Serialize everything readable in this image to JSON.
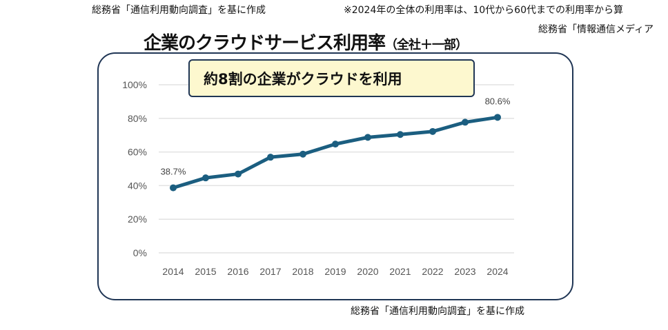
{
  "header": {
    "source_left": "総務省「通信利用動向調査」を基に作成",
    "note": "※2024年の全体の利用率は、10代から60代までの利用率から算",
    "source_right": "総務省「情報通信メディア",
    "title": "企業のクラウドサービス利用率",
    "title_suffix": "（全社＋一部）"
  },
  "callout": "約8割の企業がクラウドを利用",
  "footer_source": "総務省「通信利用動向調査」を基に作成",
  "colors": {
    "line": "#1b5e80",
    "border": "#1f3554",
    "callout_bg": "#fdf8cf"
  },
  "chart_data": {
    "type": "line",
    "title": "企業のクラウドサービス利用率",
    "categories": [
      "2014",
      "2015",
      "2016",
      "2017",
      "2018",
      "2019",
      "2020",
      "2021",
      "2022",
      "2023",
      "2024"
    ],
    "series": [
      {
        "name": "利用率",
        "values": [
          38.7,
          44.6,
          46.9,
          56.9,
          58.7,
          64.7,
          68.7,
          70.4,
          72.2,
          77.7,
          80.6
        ]
      }
    ],
    "data_labels": {
      "0": "38.7%",
      "10": "80.6%"
    },
    "yticks": [
      "0%",
      "20%",
      "40%",
      "60%",
      "80%",
      "100%"
    ],
    "ylim": [
      0,
      100
    ],
    "grid": true
  }
}
